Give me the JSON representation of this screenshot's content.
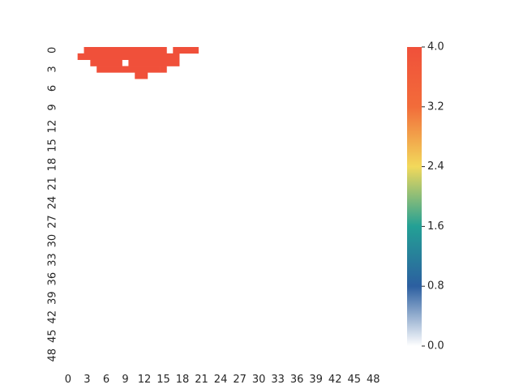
{
  "chart_data": {
    "type": "heatmap",
    "title": "",
    "xlabel": "",
    "ylabel": "",
    "n_rows": 50,
    "n_cols": 50,
    "x_ticks": [
      0,
      3,
      6,
      9,
      12,
      15,
      18,
      21,
      24,
      27,
      30,
      33,
      36,
      39,
      42,
      45,
      48
    ],
    "y_ticks": [
      0,
      3,
      6,
      9,
      12,
      15,
      18,
      21,
      24,
      27,
      30,
      33,
      36,
      39,
      42,
      45,
      48
    ],
    "x_tick_labels": [
      "0",
      "3",
      "6",
      "9",
      "12",
      "15",
      "18",
      "21",
      "24",
      "27",
      "30",
      "33",
      "36",
      "39",
      "42",
      "45",
      "48"
    ],
    "y_tick_labels": [
      "0",
      "3",
      "6",
      "9",
      "12",
      "15",
      "18",
      "21",
      "24",
      "27",
      "30",
      "33",
      "36",
      "39",
      "42",
      "45",
      "48"
    ],
    "value_range": [
      0,
      4.0
    ],
    "colorbar_ticks": [
      0.0,
      0.8,
      1.6,
      2.4,
      3.2,
      4.0
    ],
    "colorbar_tick_labels": [
      "0.0",
      "0.8",
      "1.6",
      "2.4",
      "3.2",
      "4.0"
    ],
    "colormap_stops": [
      "#ffffff",
      "#2c5fa0",
      "#23a095",
      "#f2d95b",
      "#f26c3a",
      "#f0503a"
    ],
    "cells": [
      {
        "row": 0,
        "col_start": 3,
        "col_end": 15,
        "value": 4.0
      },
      {
        "row": 0,
        "col_start": 17,
        "col_end": 20,
        "value": 4.0
      },
      {
        "row": 1,
        "col_start": 2,
        "col_end": 15,
        "value": 4.0
      },
      {
        "row": 1,
        "col_start": 16,
        "col_end": 17,
        "value": 4.0
      },
      {
        "row": 2,
        "col_start": 4,
        "col_end": 8,
        "value": 4.0
      },
      {
        "row": 2,
        "col_start": 10,
        "col_end": 17,
        "value": 4.0
      },
      {
        "row": 3,
        "col_start": 5,
        "col_end": 8,
        "value": 4.0
      },
      {
        "row": 3,
        "col_start": 9,
        "col_end": 14,
        "value": 4.0
      },
      {
        "row": 3,
        "col_start": 15,
        "col_end": 15,
        "value": 4.0
      },
      {
        "row": 4,
        "col_start": 11,
        "col_end": 12,
        "value": 4.0
      }
    ]
  }
}
